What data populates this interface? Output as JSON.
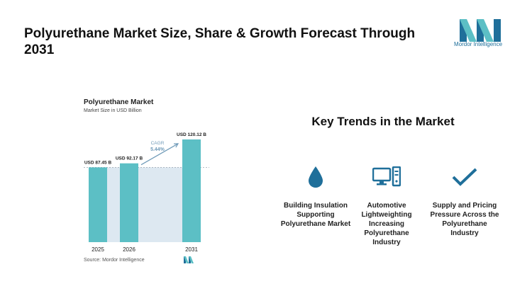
{
  "header": {
    "title": "Polyurethane Market Size, Share & Growth Forecast Through 2031",
    "logo_text": "Mordor Intelligence"
  },
  "chart_data": {
    "type": "bar",
    "title": "Polyurethane Market",
    "subtitle": "Market Size in USD Billion",
    "categories": [
      "2025",
      "2026",
      "2031"
    ],
    "values": [
      87.45,
      92.17,
      120.12
    ],
    "data_labels": [
      "USD 87.45 B",
      "USD 92.17 B",
      "USD 120.12 B"
    ],
    "cagr_label": "CAGR",
    "cagr_value": "5.44%",
    "ylim": [
      0,
      130
    ],
    "source": "Source: Mordor Intelligence",
    "colors": {
      "bar": "#5cbfc5",
      "band": "#dde8f1",
      "arrow": "#6f9ab8",
      "cagr_text": "#6f9ab8"
    }
  },
  "trends": {
    "title": "Key Trends in the Market",
    "items": [
      {
        "icon": "water-drop-icon",
        "label": "Building Insulation Supporting Polyurethane Market"
      },
      {
        "icon": "computer-icon",
        "label": "Automotive Lightweighting Increasing Polyurethane Industry"
      },
      {
        "icon": "checkmark-icon",
        "label": "Supply and Pricing Pressure Across the Polyurethane Industry"
      }
    ],
    "icon_color": "#1f6f9a"
  }
}
